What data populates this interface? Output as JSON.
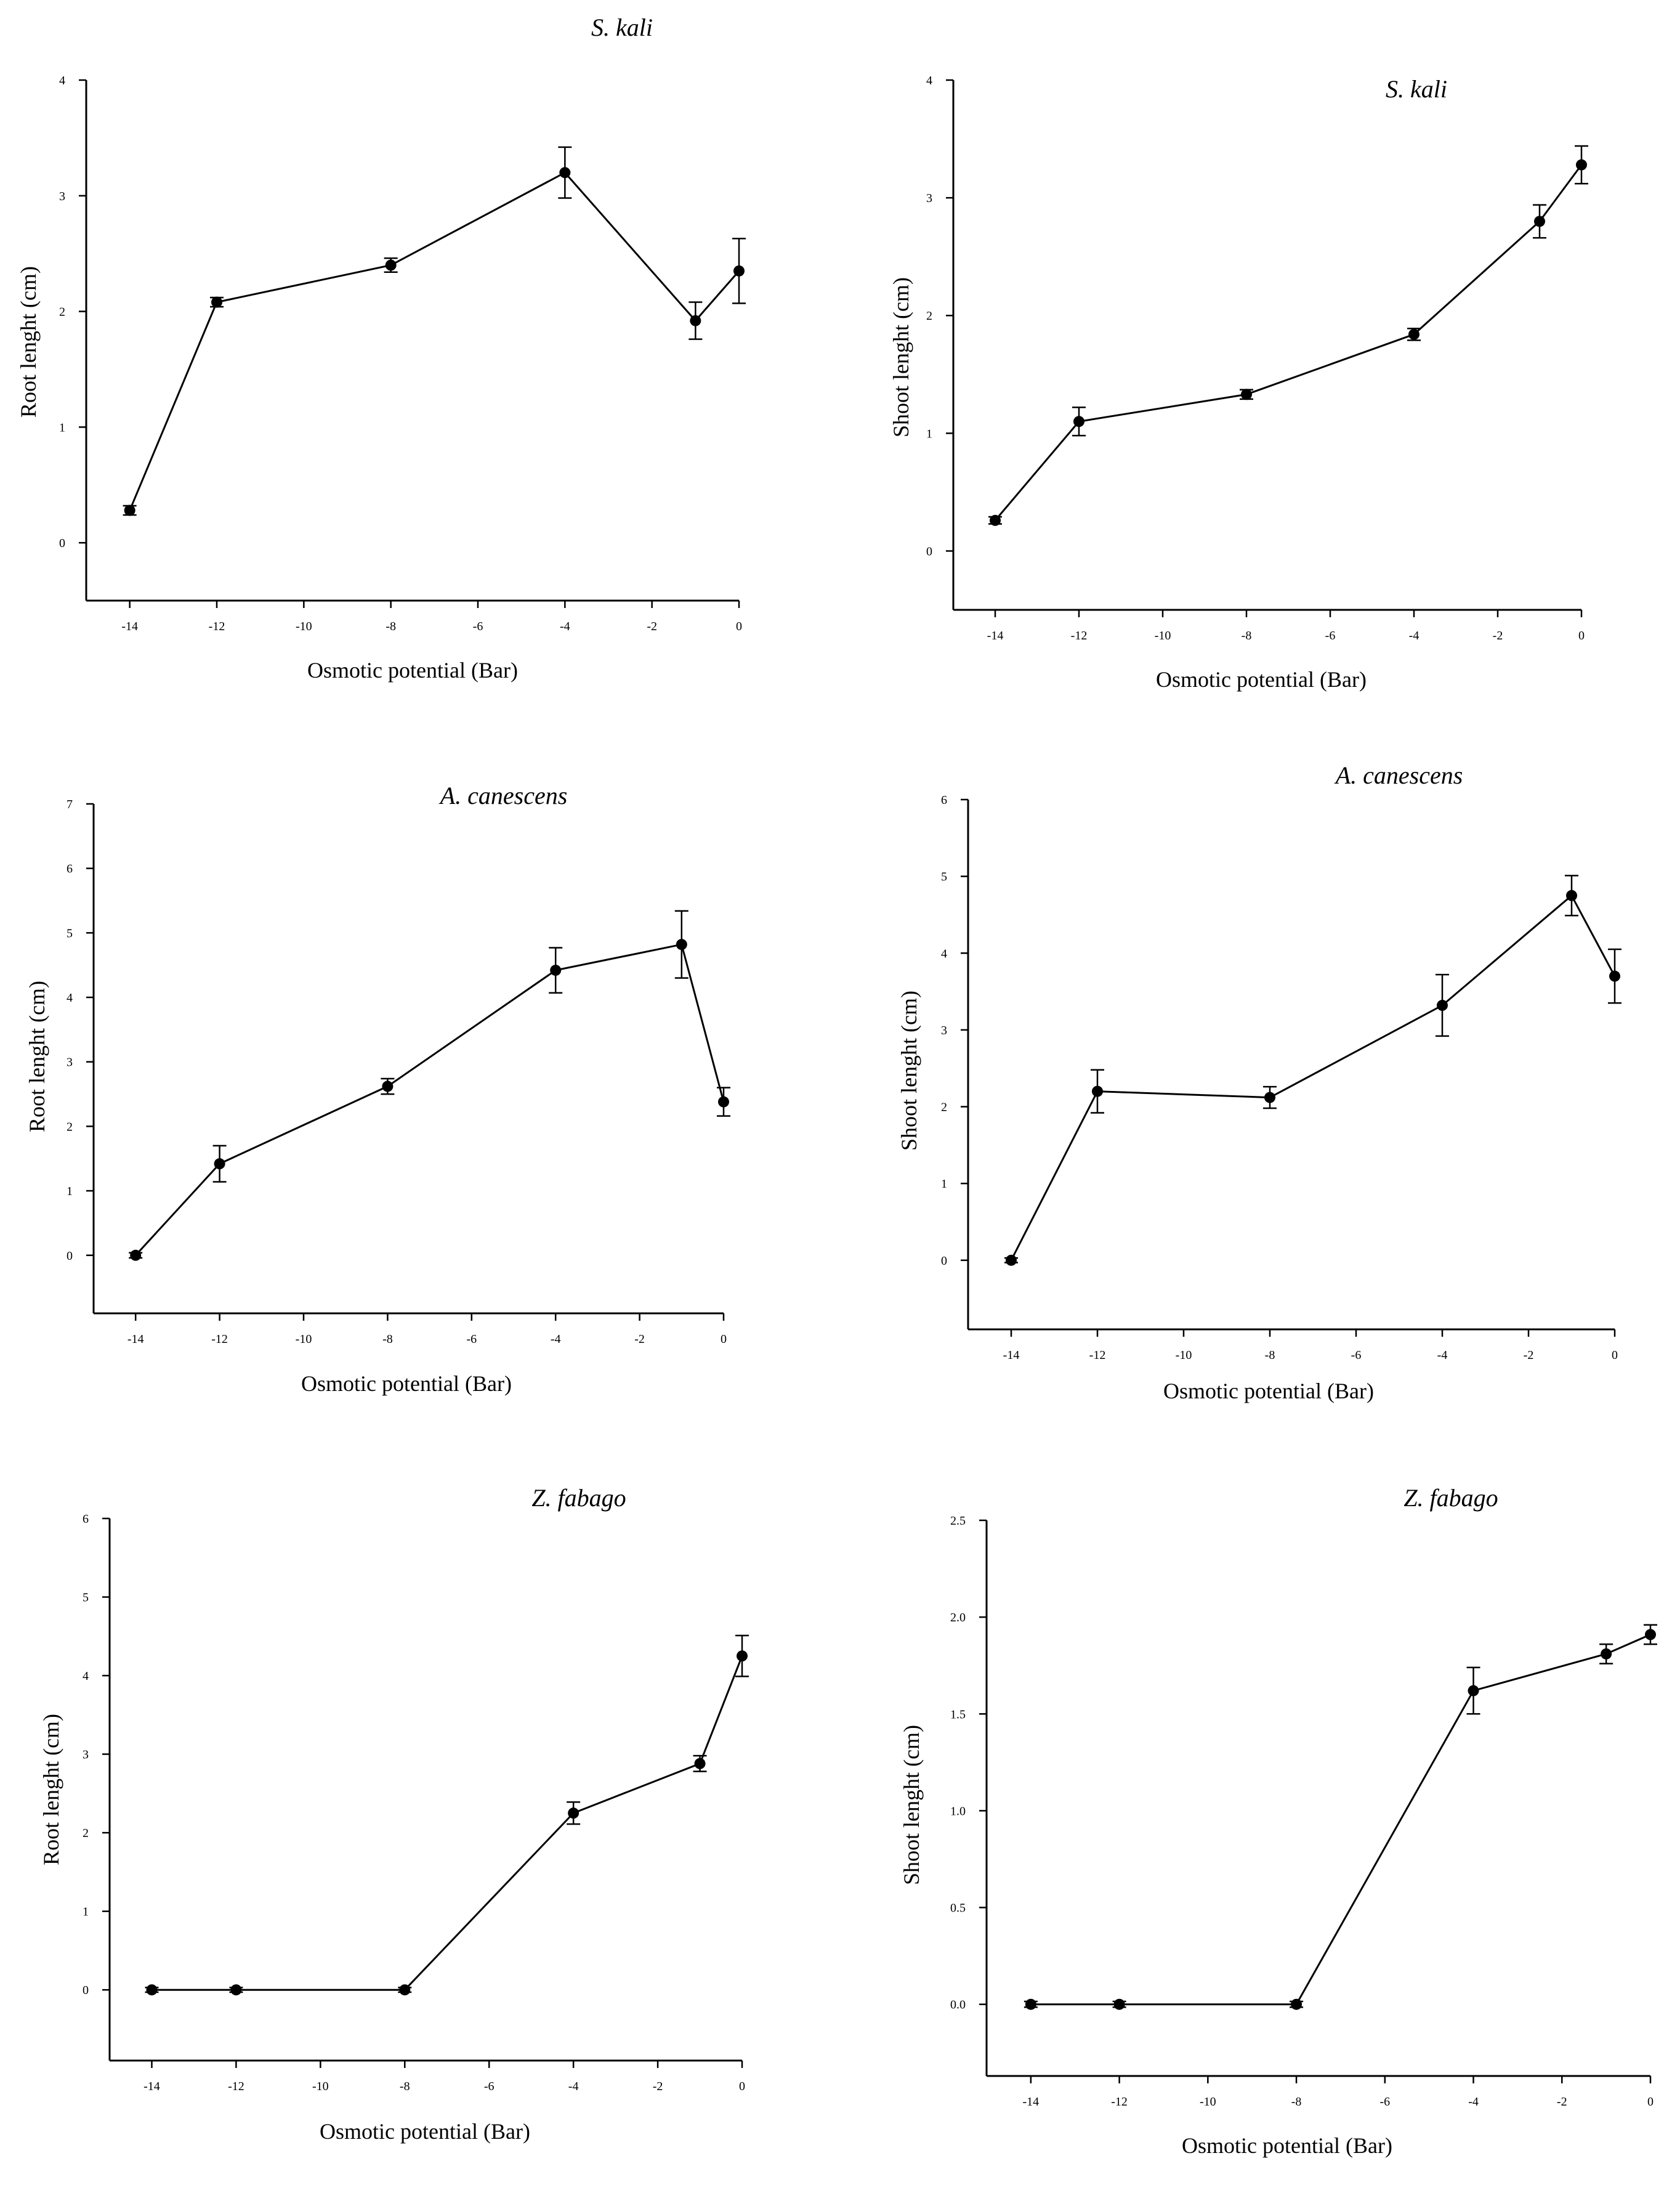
{
  "figure": {
    "panels": [
      {
        "id": "panel-1",
        "species": "S. kali",
        "ylabel": "Root lenght (cm)",
        "xlabel": "Osmotic potential (Bar)"
      },
      {
        "id": "panel-2",
        "species": "S. kali",
        "ylabel": "Shoot lenght (cm)",
        "xlabel": "Osmotic potential (Bar)"
      },
      {
        "id": "panel-3",
        "species": "A. canescens",
        "ylabel": "Root lenght (cm)",
        "xlabel": "Osmotic potential (Bar)"
      },
      {
        "id": "panel-4",
        "species": "A. canescens",
        "ylabel": "Shoot lenght (cm)",
        "xlabel": "Osmotic potential (Bar)"
      },
      {
        "id": "panel-5",
        "species": "Z. fabago",
        "ylabel": "Root lenght (cm)",
        "xlabel": "Osmotic potential (Bar)"
      },
      {
        "id": "panel-6",
        "species": "Z. fabago",
        "ylabel": "Shoot lenght (cm)",
        "xlabel": "Osmotic potential (Bar)"
      }
    ]
  },
  "chart_data": [
    {
      "type": "line",
      "title": "S. kali",
      "xlabel": "Osmotic potential (Bar)",
      "ylabel": "Root lenght (cm)",
      "x": [
        -14,
        -12,
        -8,
        -4,
        -1,
        0
      ],
      "y": [
        0.28,
        2.08,
        2.4,
        3.2,
        1.92,
        2.35
      ],
      "err": [
        0.04,
        0.04,
        0.06,
        0.22,
        0.16,
        0.28
      ],
      "xlim": [
        -15,
        0
      ],
      "ylim": [
        -0.5,
        4
      ],
      "xticks": [
        -14,
        -12,
        -10,
        -8,
        -6,
        -4,
        -2,
        0
      ],
      "yticks": [
        0,
        1,
        2,
        3,
        4
      ],
      "ytick_labels": [
        "0",
        "1",
        "2",
        "3",
        "4"
      ],
      "series_color": "#000000"
    },
    {
      "type": "line",
      "title": "S. kali",
      "xlabel": "Osmotic potential (Bar)",
      "ylabel": "Shoot lenght (cm)",
      "x": [
        -14,
        -12,
        -8,
        -4,
        -1,
        0
      ],
      "y": [
        0.26,
        1.1,
        1.33,
        1.84,
        2.8,
        3.28
      ],
      "err": [
        0.03,
        0.12,
        0.04,
        0.05,
        0.14,
        0.16
      ],
      "xlim": [
        -15,
        0
      ],
      "ylim": [
        -0.5,
        4
      ],
      "xticks": [
        -14,
        -12,
        -10,
        -8,
        -6,
        -4,
        -2,
        0
      ],
      "yticks": [
        0,
        1,
        2,
        3,
        4
      ],
      "ytick_labels": [
        "0",
        "1",
        "2",
        "3",
        "4"
      ],
      "series_color": "#000000"
    },
    {
      "type": "line",
      "title": "A. canescens",
      "xlabel": "Osmotic potential (Bar)",
      "ylabel": "Root lenght (cm)",
      "x": [
        -14,
        -12,
        -8,
        -4,
        -1,
        0
      ],
      "y": [
        0.0,
        1.42,
        2.62,
        4.42,
        4.82,
        2.38
      ],
      "err": [
        0.04,
        0.28,
        0.12,
        0.35,
        0.52,
        0.22
      ],
      "xlim": [
        -15,
        0
      ],
      "ylim": [
        -0.9,
        7
      ],
      "xticks": [
        -14,
        -12,
        -10,
        -8,
        -6,
        -4,
        -2,
        0
      ],
      "yticks": [
        0,
        1,
        2,
        3,
        4,
        5,
        6,
        7
      ],
      "ytick_labels": [
        "0",
        "1",
        "2",
        "3",
        "4",
        "5",
        "6",
        "7"
      ],
      "series_color": "#000000"
    },
    {
      "type": "line",
      "title": "A. canescens",
      "xlabel": "Osmotic potential (Bar)",
      "ylabel": "Shoot lenght (cm)",
      "x": [
        -14,
        -12,
        -8,
        -4,
        -1,
        0
      ],
      "y": [
        0.0,
        2.2,
        2.12,
        3.32,
        4.75,
        3.7
      ],
      "err": [
        0.03,
        0.28,
        0.14,
        0.4,
        0.26,
        0.35
      ],
      "xlim": [
        -15,
        0
      ],
      "ylim": [
        -0.9,
        6
      ],
      "xticks": [
        -14,
        -12,
        -10,
        -8,
        -6,
        -4,
        -2,
        0
      ],
      "yticks": [
        0,
        1,
        2,
        3,
        4,
        5,
        6
      ],
      "ytick_labels": [
        "0",
        "1",
        "2",
        "3",
        "4",
        "5",
        "6"
      ],
      "series_color": "#000000"
    },
    {
      "type": "line",
      "title": "Z. fabago",
      "xlabel": "Osmotic potential (Bar)",
      "ylabel": "Root lenght (cm)",
      "x": [
        -14,
        -12,
        -8,
        -4,
        -1,
        0
      ],
      "y": [
        0.0,
        0.0,
        0.0,
        2.25,
        2.88,
        4.25
      ],
      "err": [
        0.03,
        0.03,
        0.03,
        0.14,
        0.1,
        0.26
      ],
      "xlim": [
        -15,
        0
      ],
      "ylim": [
        -0.9,
        6
      ],
      "xticks": [
        -14,
        -12,
        -10,
        -8,
        -6,
        -4,
        -2,
        0
      ],
      "yticks": [
        0,
        1,
        2,
        3,
        4,
        5,
        6
      ],
      "ytick_labels": [
        "0",
        "1",
        "2",
        "3",
        "4",
        "5",
        "6"
      ],
      "series_color": "#000000"
    },
    {
      "type": "line",
      "title": "Z. fabago",
      "xlabel": "Osmotic potential (Bar)",
      "ylabel": "Shoot lenght (cm)",
      "x": [
        -14,
        -12,
        -8,
        -4,
        -1,
        0
      ],
      "y": [
        0.0,
        0.0,
        0.0,
        1.62,
        1.81,
        1.91
      ],
      "err": [
        0.015,
        0.015,
        0.015,
        0.12,
        0.05,
        0.05
      ],
      "xlim": [
        -15,
        0
      ],
      "ylim": [
        -0.37,
        2.5
      ],
      "xticks": [
        -14,
        -12,
        -10,
        -8,
        -6,
        -4,
        -2,
        0
      ],
      "yticks": [
        0,
        0.5,
        1.0,
        1.5,
        2.0,
        2.5
      ],
      "ytick_labels": [
        "0.0",
        "0.5",
        "1.0",
        "1.5",
        "2.0",
        "2.5"
      ],
      "series_color": "#000000"
    }
  ]
}
